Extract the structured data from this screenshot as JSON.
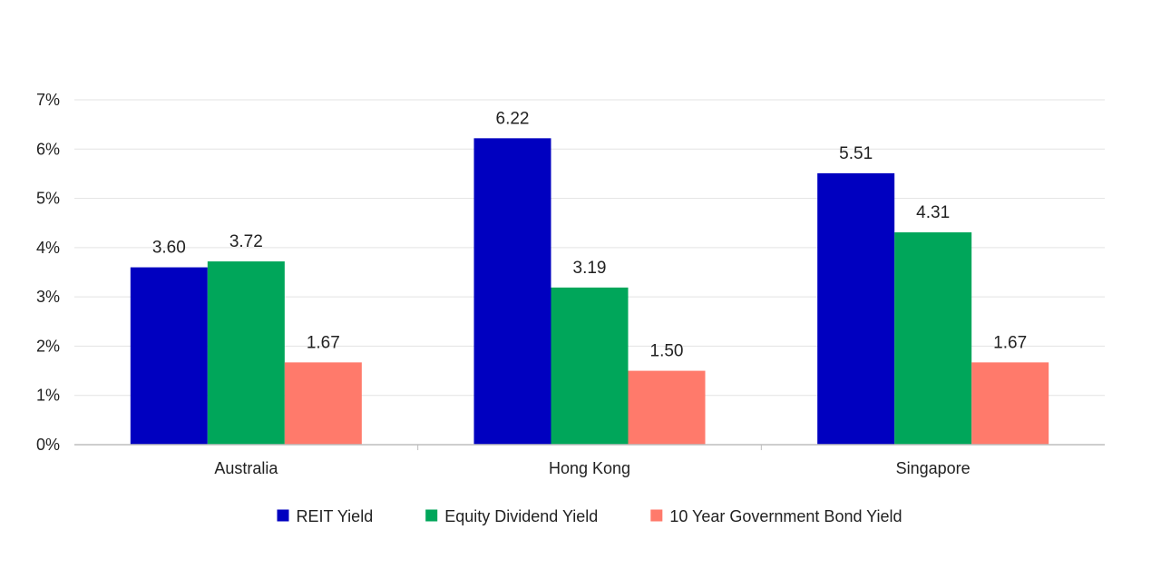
{
  "chart_data": {
    "type": "bar",
    "categories": [
      "Australia",
      "Hong Kong",
      "Singapore"
    ],
    "series": [
      {
        "name": "REIT Yield",
        "values": [
          3.6,
          6.22,
          5.51
        ],
        "labels": [
          "3.60",
          "6.22",
          "5.51"
        ],
        "color": "#0000c0"
      },
      {
        "name": "Equity Dividend Yield",
        "values": [
          3.72,
          3.19,
          4.31
        ],
        "labels": [
          "3.72",
          "3.19",
          "4.31"
        ],
        "color": "#00a65a"
      },
      {
        "name": "10 Year Government Bond Yield",
        "values": [
          1.67,
          1.5,
          1.67
        ],
        "labels": [
          "1.67",
          "1.50",
          "1.67"
        ],
        "color": "#ff7a6b"
      }
    ],
    "yticks": [
      0,
      1,
      2,
      3,
      4,
      5,
      6,
      7
    ],
    "ytick_labels": [
      "0%",
      "1%",
      "2%",
      "3%",
      "4%",
      "5%",
      "6%",
      "7%"
    ],
    "ylim": [
      0,
      7
    ],
    "grid": true,
    "legend_position": "bottom"
  }
}
